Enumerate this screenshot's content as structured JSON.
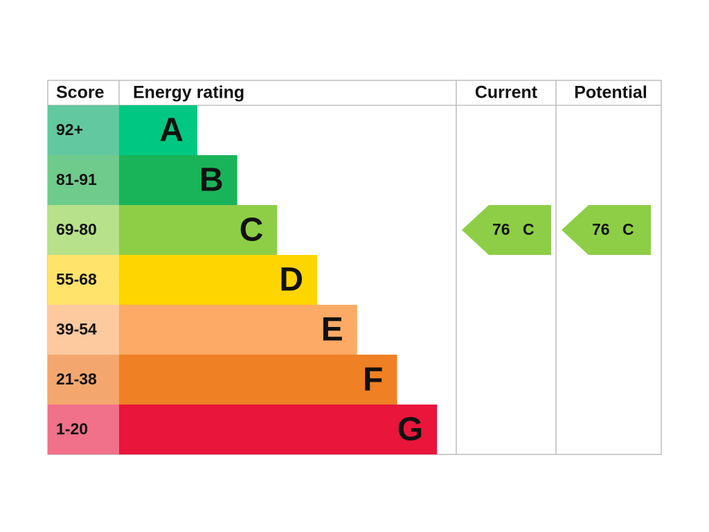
{
  "header": {
    "score": "Score",
    "rating": "Energy rating",
    "current": "Current",
    "potential": "Potential"
  },
  "bands": [
    {
      "score": "92+",
      "letter": "A",
      "color": "#00c781",
      "score_color": "#62c8a0"
    },
    {
      "score": "81-91",
      "letter": "B",
      "color": "#19b459",
      "score_color": "#6fcb8c"
    },
    {
      "score": "69-80",
      "letter": "C",
      "color": "#8dce46",
      "score_color": "#b8e18b"
    },
    {
      "score": "55-68",
      "letter": "D",
      "color": "#ffd500",
      "score_color": "#ffe36b"
    },
    {
      "score": "39-54",
      "letter": "E",
      "color": "#fcaa65",
      "score_color": "#fdc99f"
    },
    {
      "score": "21-38",
      "letter": "F",
      "color": "#ef8023",
      "score_color": "#f3a76e"
    },
    {
      "score": "1-20",
      "letter": "G",
      "color": "#e9153b",
      "score_color": "#f07189"
    }
  ],
  "current": {
    "value": "76",
    "letter": "C"
  },
  "potential": {
    "value": "76",
    "letter": "C"
  }
}
